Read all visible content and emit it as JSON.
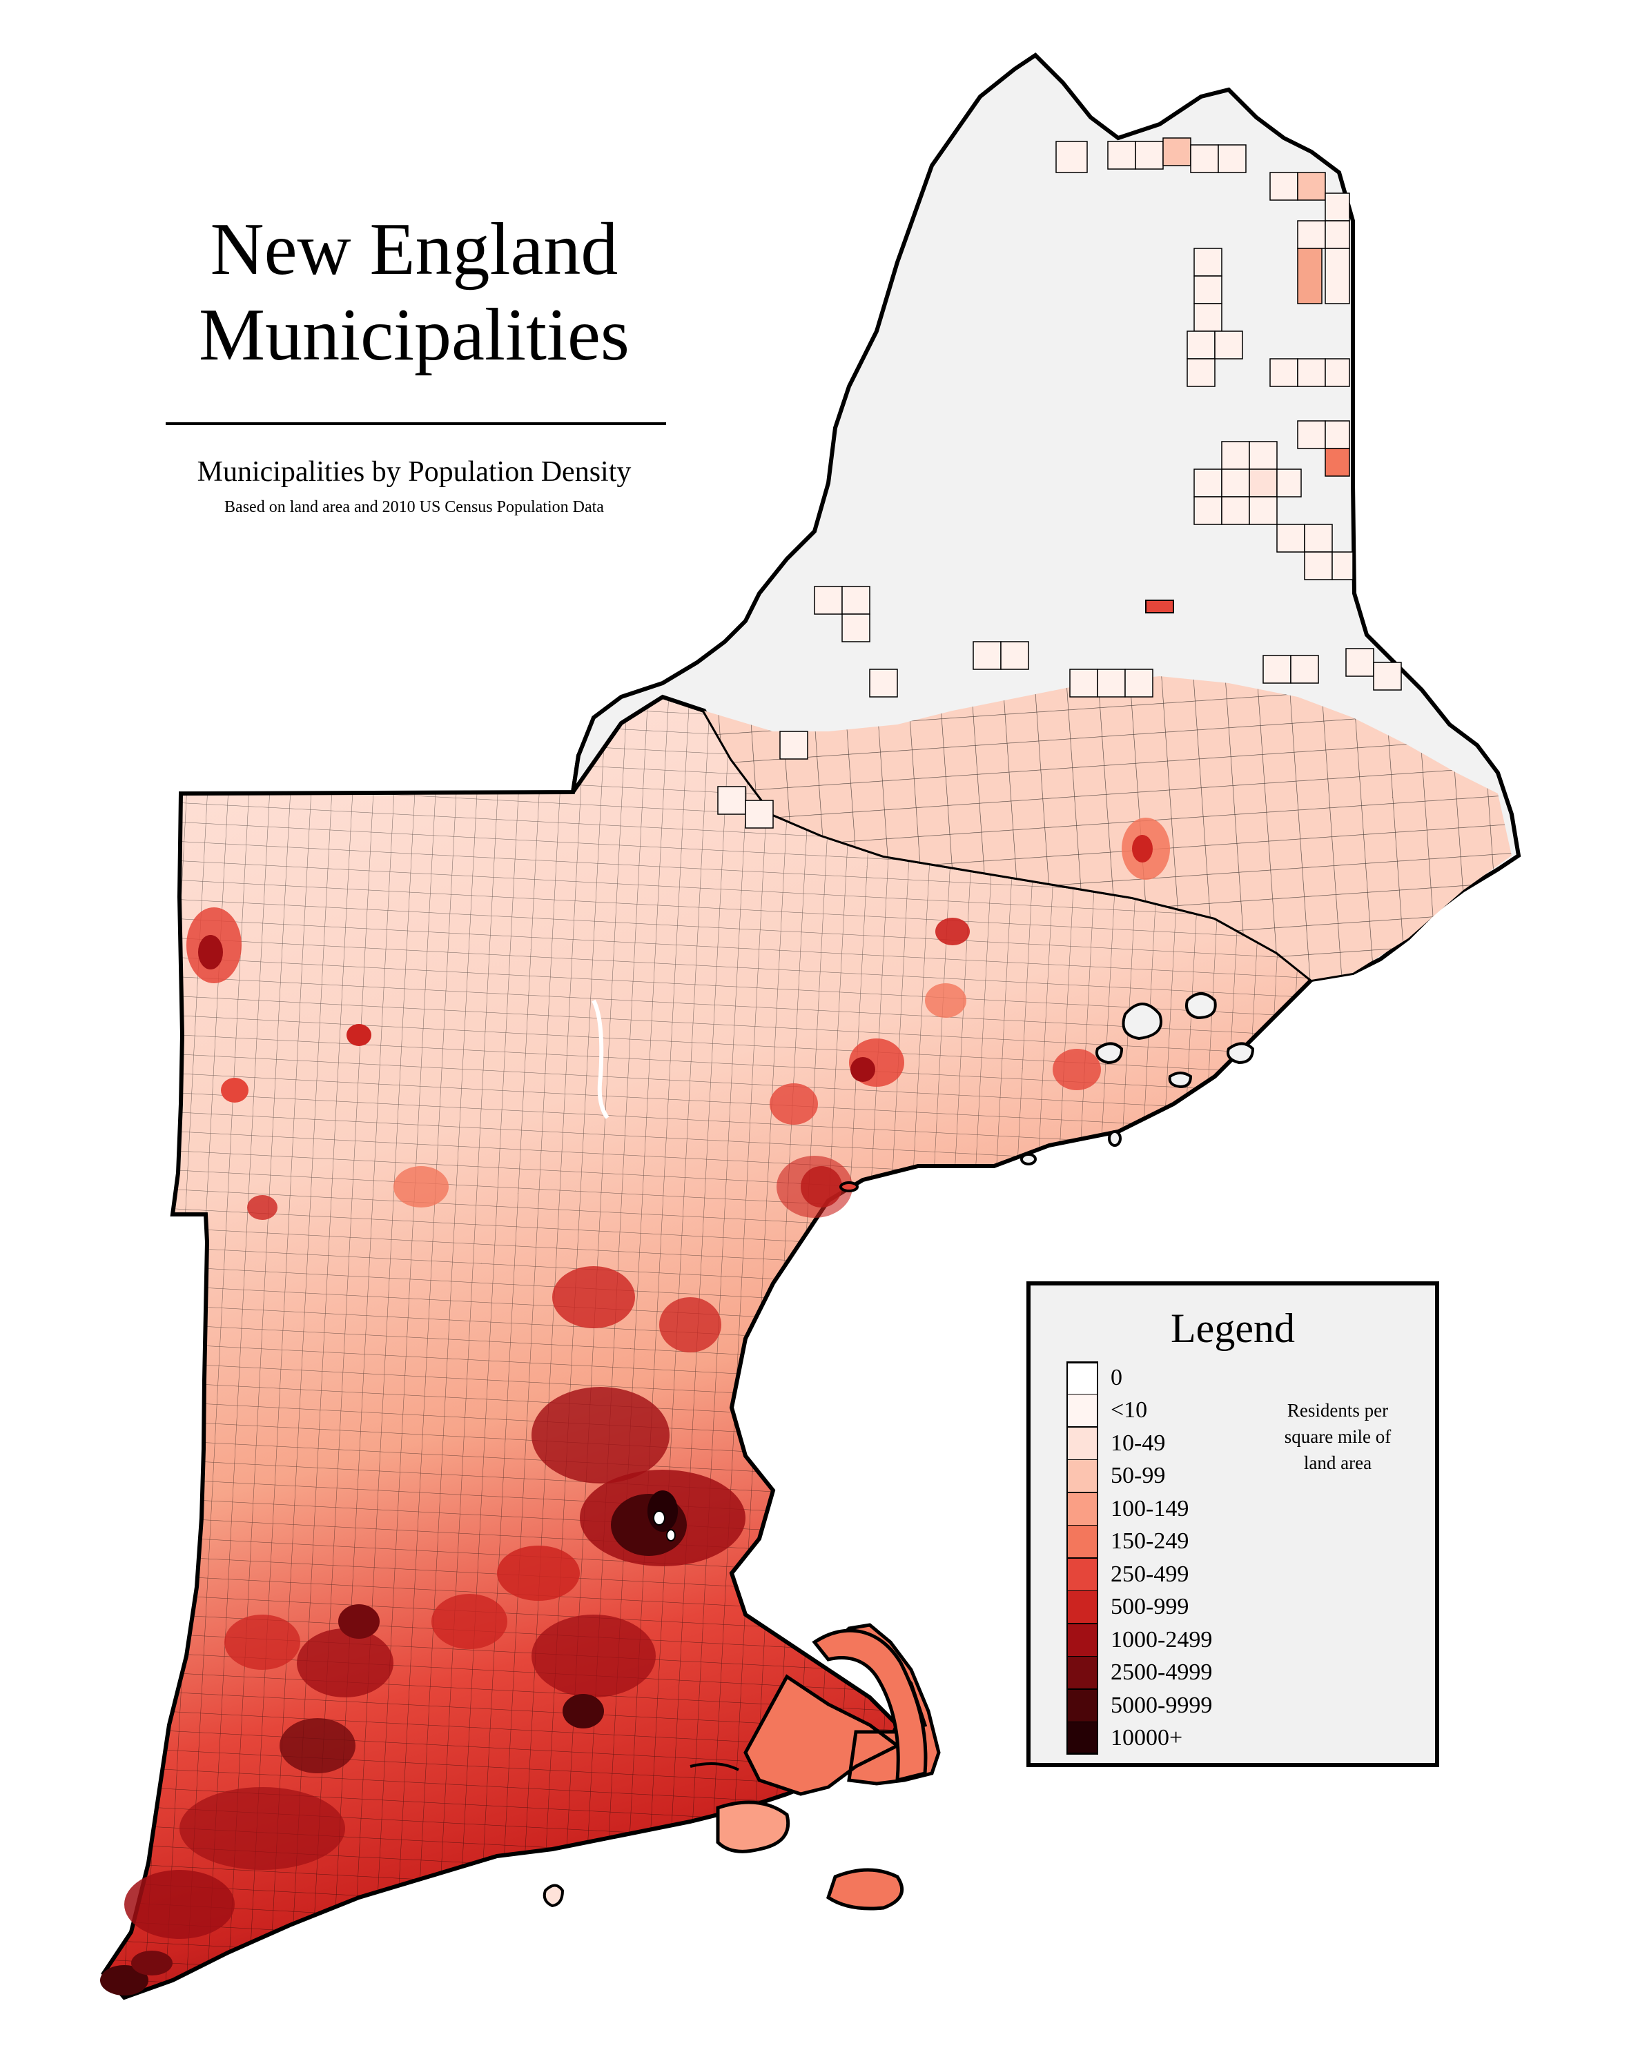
{
  "map": {
    "title_line1": "New England",
    "title_line2": "Municipalities",
    "subtitle": "Municipalities by Population Density",
    "source_note": "Based on land area and 2010 US Census Population Data",
    "background_color": "#ffffff",
    "outline_color": "#000000",
    "unincorporated_fill": "#f2f2f2"
  },
  "legend": {
    "title": "Legend",
    "description_lines": [
      "Residents per",
      "square mile of",
      "land area"
    ],
    "items": [
      {
        "label": "0",
        "color": "#ffffff"
      },
      {
        "label": "<10",
        "color": "#fff5f2"
      },
      {
        "label": "10-49",
        "color": "#fee2d9"
      },
      {
        "label": "50-99",
        "color": "#fcc4b0"
      },
      {
        "label": "100-149",
        "color": "#fa9f85"
      },
      {
        "label": "150-249",
        "color": "#f3775c"
      },
      {
        "label": "250-499",
        "color": "#e5463a"
      },
      {
        "label": "500-999",
        "color": "#cc2420"
      },
      {
        "label": "1000-2499",
        "color": "#a10f14"
      },
      {
        "label": "2500-4999",
        "color": "#740a0e"
      },
      {
        "label": "5000-9999",
        "color": "#4a0508"
      },
      {
        "label": "10000+",
        "color": "#250004"
      }
    ]
  }
}
